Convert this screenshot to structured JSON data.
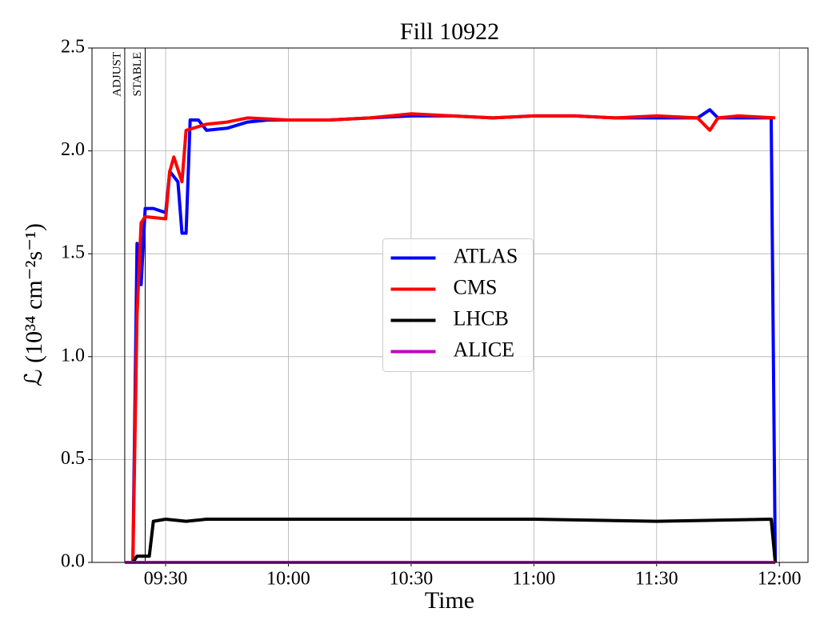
{
  "chart_data": {
    "type": "line",
    "title": "Fill 10922",
    "xlabel": "Time",
    "ylabel": "ℒ (10³⁴ cm⁻²s⁻¹)",
    "xlim": [
      "09:12",
      "12:07"
    ],
    "xticks": [
      "09:30",
      "10:00",
      "10:30",
      "11:00",
      "11:30",
      "12:00"
    ],
    "ylim": [
      0,
      2.5
    ],
    "yticks": [
      {
        "value": 0,
        "label": "0.0"
      },
      0.5,
      {
        "value": 1,
        "label": "1.0"
      },
      1.5,
      {
        "value": 2,
        "label": "2.0"
      },
      2.5
    ],
    "grid": true,
    "legend": "center",
    "annotations": [
      {
        "label": "ADJUST",
        "x": "09:20"
      },
      {
        "label": "STABLE",
        "x": "09:25"
      }
    ],
    "series": [
      {
        "name": "ATLAS",
        "color": "#0000ff",
        "x": [
          "09:22",
          "09:23",
          "09:24",
          "09:25",
          "09:27",
          "09:30",
          "09:31",
          "09:33",
          "09:34",
          "09:35",
          "09:36",
          "09:38",
          "09:40",
          "09:45",
          "09:50",
          "09:55",
          "10:00",
          "10:10",
          "10:20",
          "10:30",
          "10:40",
          "10:50",
          "11:00",
          "11:10",
          "11:20",
          "11:30",
          "11:40",
          "11:43",
          "11:45",
          "11:50",
          "11:58",
          "11:59"
        ],
        "values": [
          0,
          1.55,
          1.35,
          1.72,
          1.72,
          1.7,
          1.9,
          1.85,
          1.6,
          1.6,
          2.15,
          2.15,
          2.1,
          2.11,
          2.14,
          2.15,
          2.15,
          2.15,
          2.16,
          2.17,
          2.17,
          2.16,
          2.17,
          2.17,
          2.16,
          2.16,
          2.16,
          2.2,
          2.16,
          2.16,
          2.16,
          0
        ]
      },
      {
        "name": "CMS",
        "color": "#ff0000",
        "x": [
          "09:22",
          "09:23",
          "09:24",
          "09:25",
          "09:30",
          "09:31",
          "09:32",
          "09:34",
          "09:35",
          "09:40",
          "09:45",
          "09:50",
          "10:00",
          "10:10",
          "10:20",
          "10:30",
          "10:40",
          "10:50",
          "11:00",
          "11:10",
          "11:20",
          "11:30",
          "11:40",
          "11:43",
          "11:45",
          "11:50",
          "11:59"
        ],
        "values": [
          0,
          1.2,
          1.65,
          1.68,
          1.67,
          1.9,
          1.97,
          1.85,
          2.1,
          2.13,
          2.14,
          2.16,
          2.15,
          2.15,
          2.16,
          2.18,
          2.17,
          2.16,
          2.17,
          2.17,
          2.16,
          2.17,
          2.16,
          2.1,
          2.16,
          2.17,
          2.16
        ]
      },
      {
        "name": "LHCB",
        "color": "#000000",
        "x": [
          "09:22",
          "09:23",
          "09:26",
          "09:27",
          "09:30",
          "09:35",
          "09:40",
          "10:00",
          "10:30",
          "11:00",
          "11:30",
          "11:58",
          "11:59"
        ],
        "values": [
          0,
          0.03,
          0.03,
          0.2,
          0.21,
          0.2,
          0.21,
          0.21,
          0.21,
          0.21,
          0.2,
          0.21,
          0
        ]
      },
      {
        "name": "ALICE",
        "color": "#bf00bf",
        "x": [
          "09:20",
          "11:59"
        ],
        "values": [
          0,
          0
        ]
      }
    ]
  }
}
